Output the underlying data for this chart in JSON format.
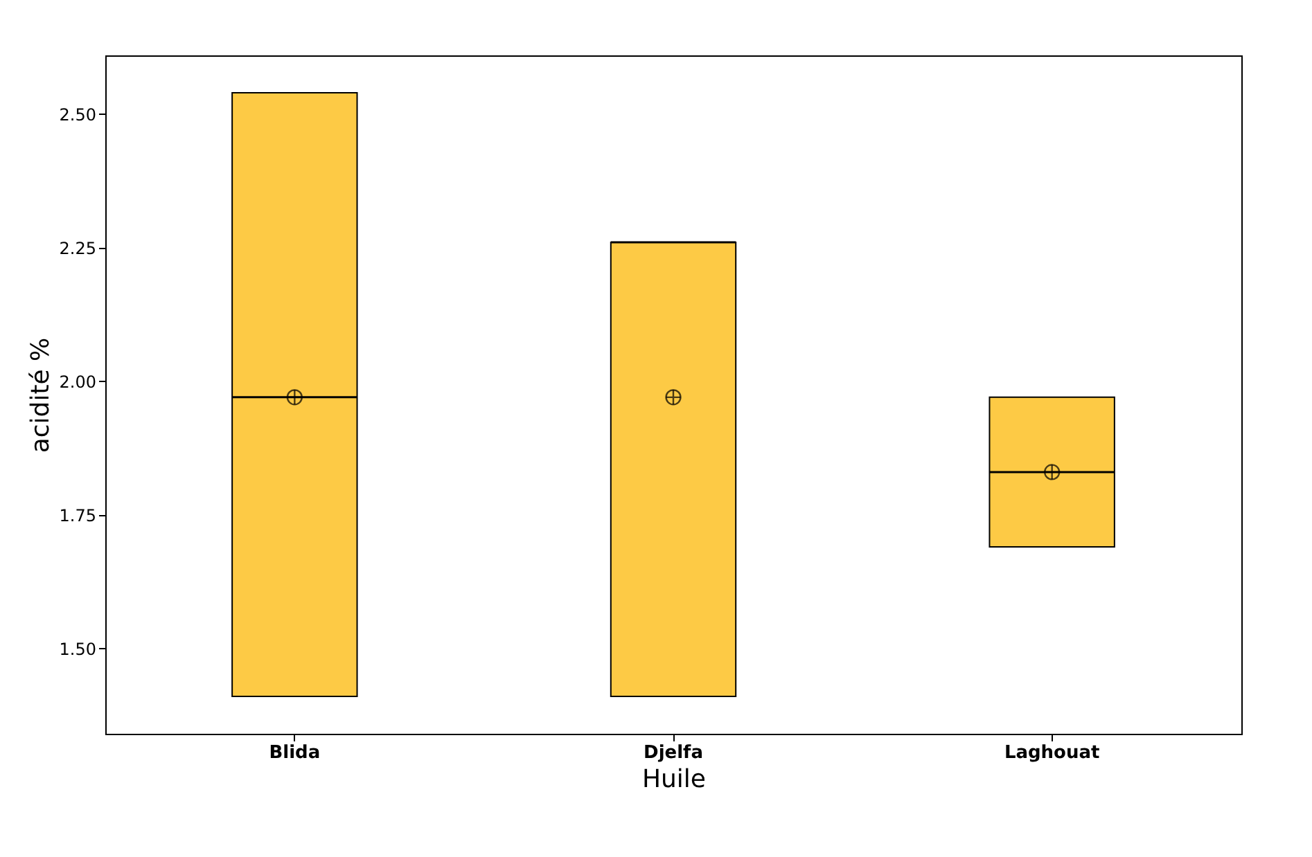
{
  "chart_data": {
    "type": "box",
    "xlabel": "Huile",
    "ylabel": "acidité %",
    "categories": [
      "Blida",
      "Djelfa",
      "Laghouat"
    ],
    "color": "#fdca45",
    "boxes": [
      {
        "low": 1.41,
        "q1": 1.41,
        "median": 1.97,
        "q3": 2.54,
        "high": 2.54,
        "mean": 1.97
      },
      {
        "low": 1.41,
        "q1": 1.41,
        "median": 2.26,
        "q3": 2.26,
        "high": 2.26,
        "mean": 1.97
      },
      {
        "low": 1.69,
        "q1": 1.69,
        "median": 1.83,
        "q3": 1.97,
        "high": 1.97,
        "mean": 1.83
      }
    ],
    "ylim": [
      1.34,
      2.61
    ],
    "yticks": [
      {
        "value": 1.5,
        "label": "1.50"
      },
      {
        "value": 1.75,
        "label": "1.75"
      },
      {
        "value": 2.0,
        "label": "2.00"
      },
      {
        "value": 2.25,
        "label": "2.25"
      },
      {
        "value": 2.5,
        "label": "2.50"
      }
    ],
    "grid": false
  }
}
